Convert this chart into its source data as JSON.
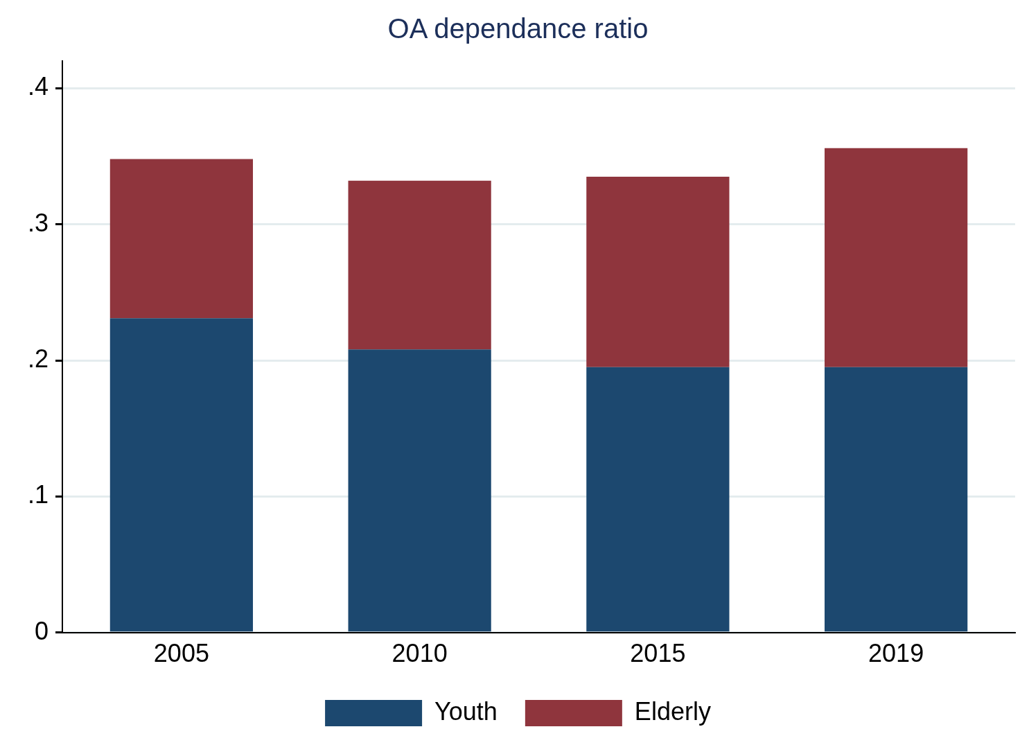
{
  "chart_data": {
    "type": "bar",
    "title": "OA dependance ratio",
    "categories": [
      "2005",
      "2010",
      "2015",
      "2019"
    ],
    "stacked": true,
    "series": [
      {
        "name": "Youth",
        "color": "#1c486f",
        "values": [
          0.231,
          0.208,
          0.195,
          0.195
        ]
      },
      {
        "name": "Elderly",
        "color": "#8f353d",
        "values": [
          0.117,
          0.124,
          0.14,
          0.161
        ]
      }
    ],
    "ylim": [
      0,
      0.42
    ],
    "yticks": [
      0,
      {
        "value": 0.1,
        "label": ".1"
      },
      {
        "value": 0.2,
        "label": ".2"
      },
      {
        "value": 0.3,
        "label": ".3"
      },
      {
        "value": 0.4,
        "label": ".4"
      }
    ],
    "grid": "y",
    "legend": "bottom"
  }
}
